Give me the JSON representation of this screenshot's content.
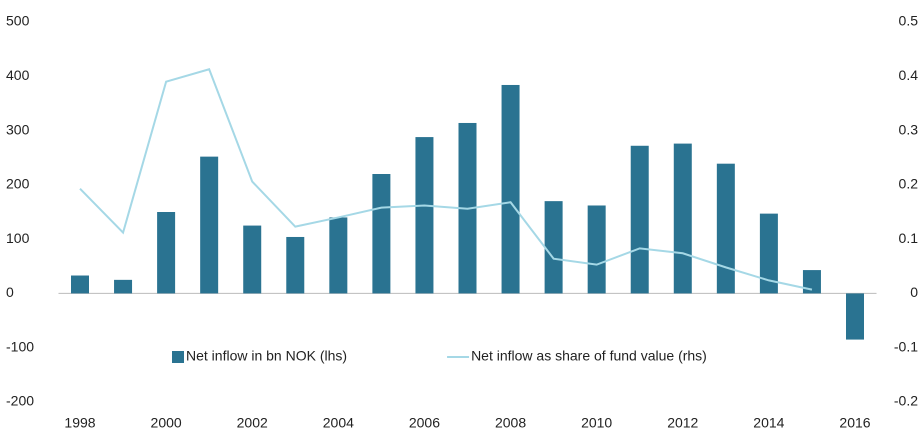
{
  "chart_data": {
    "type": "bar-line",
    "categories": [
      "1998",
      null,
      "2000",
      null,
      "2002",
      null,
      "2004",
      null,
      "2006",
      null,
      "2008",
      null,
      "2010",
      null,
      "2012",
      null,
      "2014",
      null,
      "2016"
    ],
    "series": [
      {
        "name": "Net inflow in bn NOK (lhs)",
        "type": "bar",
        "color": "#2a7391",
        "values": [
          33,
          25,
          150,
          252,
          125,
          104,
          140,
          220,
          288,
          314,
          384,
          170,
          162,
          272,
          276,
          239,
          147,
          43,
          -85
        ]
      },
      {
        "name": "Net inflow as share of fund value (rhs)",
        "type": "line",
        "axis": "y2",
        "color": "#a5d8e6",
        "values": [
          0.193,
          0.112,
          0.39,
          0.413,
          0.206,
          0.123,
          0.14,
          0.158,
          0.162,
          0.156,
          0.168,
          0.064,
          0.053,
          0.083,
          0.074,
          0.048,
          0.024,
          0.007,
          null
        ]
      }
    ],
    "ylim": [
      -200,
      500
    ],
    "yticks": [
      -200,
      -100,
      0,
      100,
      200,
      300,
      400,
      500
    ],
    "y2lim": [
      -0.2,
      0.5
    ],
    "y2ticks": [
      -0.2,
      -0.1,
      0,
      0.1,
      0.2,
      0.3,
      0.4,
      0.5
    ],
    "grid": false,
    "legend": "lower center"
  }
}
